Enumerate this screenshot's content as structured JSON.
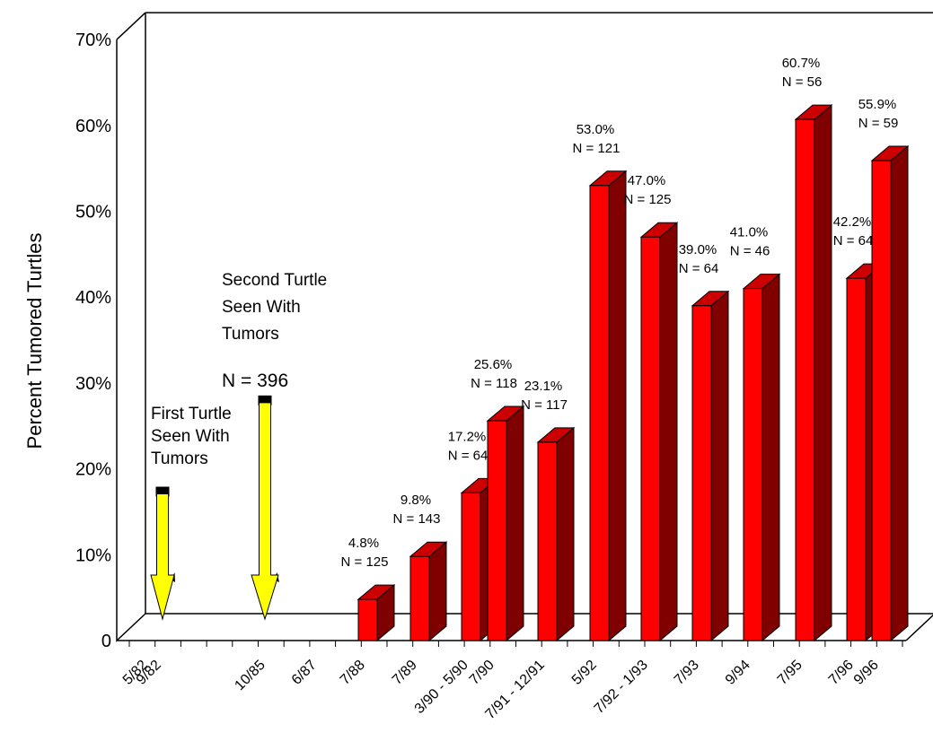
{
  "chart_data": {
    "type": "bar",
    "ylabel": "Percent Tumored Turtles",
    "xlabel": "",
    "ylim": [
      0,
      70
    ],
    "y_ticks": [
      "0",
      "10%",
      "20%",
      "30%",
      "40%",
      "50%",
      "60%",
      "70%"
    ],
    "x_ticks": [
      "5/82",
      "9/82",
      "10/85",
      "6/87",
      "7/88",
      "7/89",
      "3/90 - 5/90",
      "7/90",
      "7/91 - 12/91",
      "5/92",
      "7/92 - 1/93",
      "7/93",
      "9/94",
      "7/95",
      "7/96",
      "9/96"
    ],
    "bars": [
      {
        "category": "7/88",
        "value": 4.8,
        "pct_label": "4.8%",
        "n_label": "N = 125"
      },
      {
        "category": "7/89",
        "value": 9.8,
        "pct_label": "9.8%",
        "n_label": "N = 143"
      },
      {
        "category": "3/90 - 5/90",
        "value": 17.2,
        "pct_label": "17.2%",
        "n_label": "N = 64"
      },
      {
        "category": "7/90",
        "value": 25.6,
        "pct_label": "25.6%",
        "n_label": "N = 118"
      },
      {
        "category": "7/91 - 12/91",
        "value": 23.1,
        "pct_label": "23.1%",
        "n_label": "N = 117"
      },
      {
        "category": "5/92",
        "value": 53.0,
        "pct_label": "53.0%",
        "n_label": "N = 121"
      },
      {
        "category": "7/92 - 1/93",
        "value": 47.0,
        "pct_label": "47.0%",
        "n_label": "N = 125"
      },
      {
        "category": "7/93",
        "value": 39.0,
        "pct_label": "39.0%",
        "n_label": "N = 64"
      },
      {
        "category": "9/94",
        "value": 41.0,
        "pct_label": "41.0%",
        "n_label": "N = 46"
      },
      {
        "category": "7/95",
        "value": 60.7,
        "pct_label": "60.7%",
        "n_label": "N = 56"
      },
      {
        "category": "7/96",
        "value": 42.2,
        "pct_label": "42.2%",
        "n_label": "N = 64"
      },
      {
        "category": "9/96",
        "value": 55.9,
        "pct_label": "55.9%",
        "n_label": "N = 59"
      }
    ],
    "annotations": [
      {
        "category": "9/82",
        "text": [
          "First Turtle",
          "Seen With",
          "Tumors"
        ],
        "value": 17.5
      },
      {
        "category": "10/85",
        "text": [
          "Second Turtle",
          "Seen With",
          "Tumors"
        ],
        "n_label": "N = 396",
        "value": 27.5
      }
    ],
    "colors": {
      "bar_front": "#ff0000",
      "bar_side": "#800000",
      "bar_top": "#cc0000",
      "arrow": "#ffff00",
      "arrow_cap": "#000000"
    }
  }
}
